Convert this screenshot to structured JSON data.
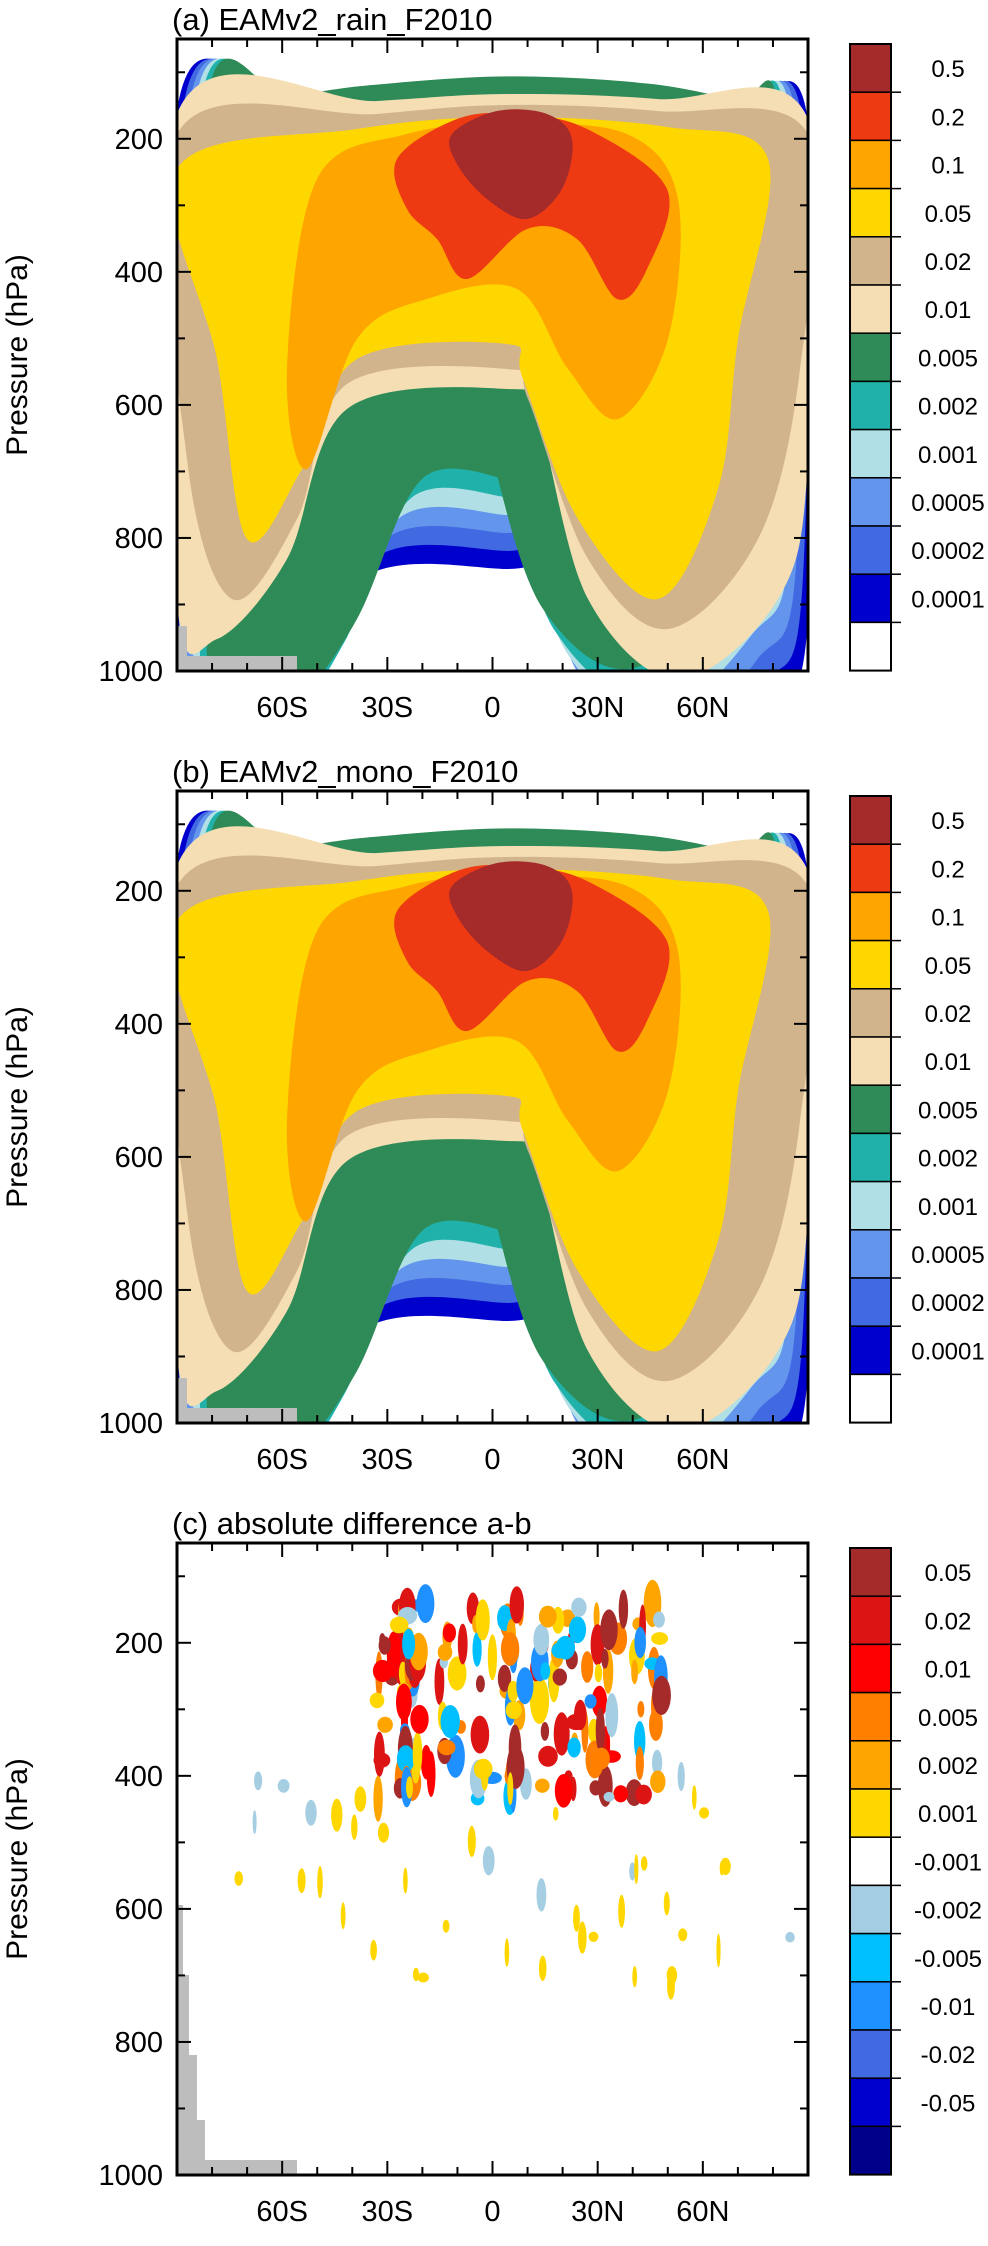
{
  "chart_data": [
    {
      "type": "heatmap",
      "title": "(a) EAMv2_rain_F2010",
      "ylabel": "Pressure (hPa)",
      "xlabel": "",
      "xlim": [
        -90,
        90
      ],
      "ylim": [
        1000,
        50
      ],
      "y_inverted": true,
      "xticks": [
        {
          "v": -60,
          "label": "60S"
        },
        {
          "v": -30,
          "label": "30S"
        },
        {
          "v": 0,
          "label": "0"
        },
        {
          "v": 30,
          "label": "30N"
        },
        {
          "v": 60,
          "label": "60N"
        }
      ],
      "yticks": [
        {
          "v": 200,
          "label": "200"
        },
        {
          "v": 400,
          "label": "400"
        },
        {
          "v": 600,
          "label": "600"
        },
        {
          "v": 800,
          "label": "800"
        },
        {
          "v": 1000,
          "label": "1000"
        }
      ],
      "colorbar": {
        "labels": [
          "0.5",
          "0.2",
          "0.1",
          "0.05",
          "0.02",
          "0.01",
          "0.005",
          "0.002",
          "0.001",
          "0.0005",
          "0.0002",
          "0.0001"
        ],
        "colors": [
          "#a52a2a",
          "#ee3a12",
          "#ffa500",
          "#ffd700",
          "#d2b48c",
          "#f5deb3",
          "#2e8b57",
          "#20b2aa",
          "#b0e0e6",
          "#6495ed",
          "#4169e1",
          "#0000cd",
          "#ffffff"
        ]
      }
    },
    {
      "type": "heatmap",
      "title": "(b) EAMv2_mono_F2010",
      "ylabel": "Pressure (hPa)",
      "xlabel": "",
      "xlim": [
        -90,
        90
      ],
      "ylim": [
        1000,
        50
      ],
      "y_inverted": true,
      "xticks": [
        {
          "v": -60,
          "label": "60S"
        },
        {
          "v": -30,
          "label": "30S"
        },
        {
          "v": 0,
          "label": "0"
        },
        {
          "v": 30,
          "label": "30N"
        },
        {
          "v": 60,
          "label": "60N"
        }
      ],
      "yticks": [
        {
          "v": 200,
          "label": "200"
        },
        {
          "v": 400,
          "label": "400"
        },
        {
          "v": 600,
          "label": "600"
        },
        {
          "v": 800,
          "label": "800"
        },
        {
          "v": 1000,
          "label": "1000"
        }
      ],
      "colorbar": {
        "labels": [
          "0.5",
          "0.2",
          "0.1",
          "0.05",
          "0.02",
          "0.01",
          "0.005",
          "0.002",
          "0.001",
          "0.0005",
          "0.0002",
          "0.0001"
        ],
        "colors": [
          "#a52a2a",
          "#ee3a12",
          "#ffa500",
          "#ffd700",
          "#d2b48c",
          "#f5deb3",
          "#2e8b57",
          "#20b2aa",
          "#b0e0e6",
          "#6495ed",
          "#4169e1",
          "#0000cd",
          "#ffffff"
        ]
      }
    },
    {
      "type": "heatmap",
      "title": "(c) absolute difference a-b",
      "ylabel": "Pressure (hPa)",
      "xlabel": "",
      "xlim": [
        -90,
        90
      ],
      "ylim": [
        1000,
        50
      ],
      "y_inverted": true,
      "xticks": [
        {
          "v": -60,
          "label": "60S"
        },
        {
          "v": -30,
          "label": "30S"
        },
        {
          "v": 0,
          "label": "0"
        },
        {
          "v": 30,
          "label": "30N"
        },
        {
          "v": 60,
          "label": "60N"
        }
      ],
      "yticks": [
        {
          "v": 200,
          "label": "200"
        },
        {
          "v": 400,
          "label": "400"
        },
        {
          "v": 600,
          "label": "600"
        },
        {
          "v": 800,
          "label": "800"
        },
        {
          "v": 1000,
          "label": "1000"
        }
      ],
      "colorbar": {
        "labels": [
          "0.05",
          "0.02",
          "0.01",
          "0.005",
          "0.002",
          "0.001",
          "-0.001",
          "-0.002",
          "-0.005",
          "-0.01",
          "-0.02",
          "-0.05"
        ],
        "colors": [
          "#a52a2a",
          "#dc1414",
          "#ff0000",
          "#ff7f00",
          "#ffa500",
          "#ffd700",
          "#ffffff",
          "#a6cee3",
          "#00bfff",
          "#1e90ff",
          "#4169e1",
          "#0000cd",
          "#00008b"
        ]
      }
    }
  ]
}
